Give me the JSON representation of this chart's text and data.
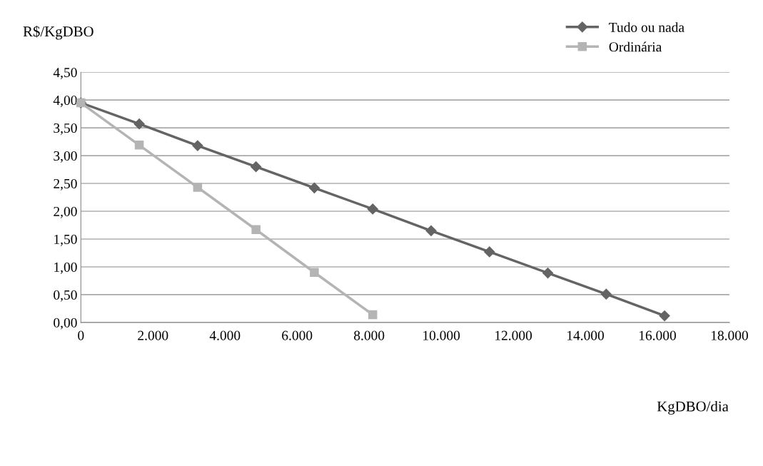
{
  "chart_data": {
    "type": "line",
    "ylabel": "R$/KgDBO",
    "xlabel": "KgDBO/dia",
    "series": [
      {
        "name": "Tudo ou nada",
        "color": "#646464",
        "marker": "diamond",
        "x": [
          0,
          1620,
          3240,
          4860,
          6480,
          8100,
          9720,
          11340,
          12960,
          14580,
          16200
        ],
        "values": [
          3.95,
          3.57,
          3.18,
          2.8,
          2.42,
          2.04,
          1.65,
          1.27,
          0.89,
          0.51,
          0.12
        ]
      },
      {
        "name": "Ordinária",
        "color": "#b4b4b4",
        "marker": "square",
        "x": [
          0,
          1620,
          3240,
          4860,
          6480,
          8100
        ],
        "values": [
          3.95,
          3.19,
          2.43,
          1.67,
          0.9,
          0.14
        ]
      }
    ],
    "xlim": [
      0,
      18000
    ],
    "xticks": [
      0,
      {
        "value": 2000,
        "label": "2.000"
      },
      {
        "value": 4000,
        "label": "4.000"
      },
      {
        "value": 6000,
        "label": "6.000"
      },
      {
        "value": 8000,
        "label": "8.000"
      },
      {
        "value": 10000,
        "label": "10.000"
      },
      {
        "value": 12000,
        "label": "12.000"
      },
      {
        "value": 14000,
        "label": "14.000"
      },
      {
        "value": 16000,
        "label": "16.000"
      },
      {
        "value": 18000,
        "label": "18.000"
      }
    ],
    "ylim": [
      0,
      4.5
    ],
    "yticks": [
      {
        "value": 0,
        "label": "0,00"
      },
      {
        "value": 0.5,
        "label": "0,50"
      },
      {
        "value": 1,
        "label": "1,00"
      },
      {
        "value": 1.5,
        "label": "1,50"
      },
      {
        "value": 2,
        "label": "2,00"
      },
      {
        "value": 2.5,
        "label": "2,50"
      },
      {
        "value": 3,
        "label": "3,00"
      },
      {
        "value": 3.5,
        "label": "3,50"
      },
      {
        "value": 4,
        "label": "4,00"
      },
      {
        "value": 4.5,
        "label": "4,50"
      }
    ],
    "grid": "y",
    "legend": "top right",
    "line_style": "solid"
  }
}
